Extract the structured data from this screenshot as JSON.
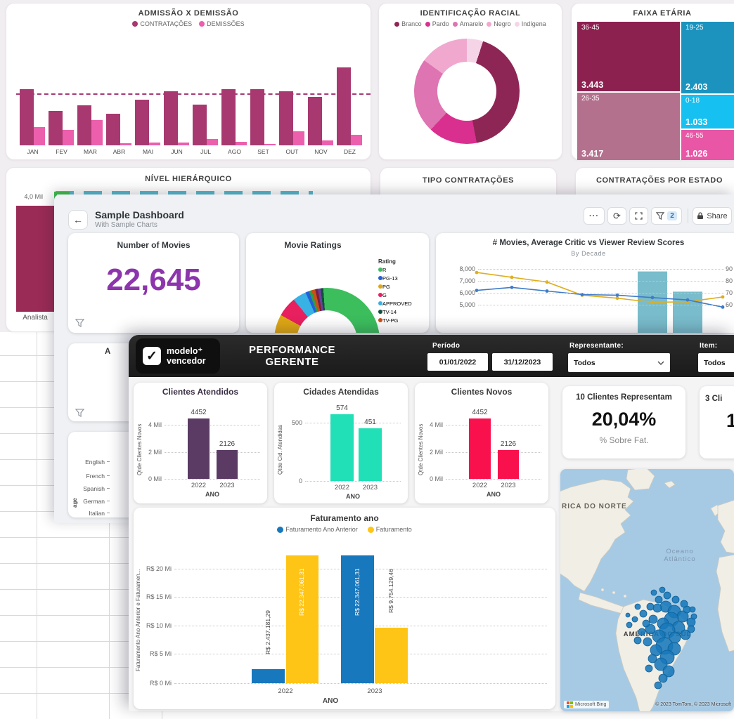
{
  "hr": {
    "admissao": {
      "title": "ADMISSÃO X DEMISSÃO",
      "legend": [
        {
          "label": "CONTRATAÇÕES",
          "color": "#A73970"
        },
        {
          "label": "DEMISSÕES",
          "color": "#EC5FAD"
        }
      ]
    },
    "racial": {
      "title": "IDENTIFICAÇÃO RACIAL",
      "legend": [
        {
          "label": "Branco",
          "color": "#8E2655"
        },
        {
          "label": "Pardo",
          "color": "#D9308F"
        },
        {
          "label": "Amarelo",
          "color": "#DE74B1"
        },
        {
          "label": "Negro",
          "color": "#F0A8CF"
        },
        {
          "label": "Indígena",
          "color": "#F6D4E7"
        }
      ]
    },
    "faixa": {
      "title": "FAIXA ETÁRIA"
    },
    "nivel": {
      "title": "NÍVEL HIERÁRQUICO",
      "ytick": "4,0 Mil",
      "category": "Analista"
    },
    "tipo_title": "TIPO CONTRATAÇÕES",
    "estado_title": "CONTRATAÇÕES POR ESTADO"
  },
  "sample": {
    "title": "Sample Dashboard",
    "subtitle": "With Sample Charts",
    "toolbar": {
      "more_icon": "···",
      "refresh_icon": "⟳",
      "filter_badge": "2",
      "share": "Share"
    },
    "movies": {
      "title": "Number of Movies",
      "value": "22,645",
      "accent": "#8C35AC"
    },
    "ratings": {
      "title": "Movie Ratings",
      "legend_title": "Rating",
      "legend": [
        {
          "label": "R",
          "color": "#3CBE5D"
        },
        {
          "label": "PG-13",
          "color": "#2360D8"
        },
        {
          "label": "PG",
          "color": "#DFA815"
        },
        {
          "label": "G",
          "color": "#E8205F"
        },
        {
          "label": "APPROVED",
          "color": "#38B1E4"
        },
        {
          "label": "TV-14",
          "color": "#11503C"
        },
        {
          "label": "TV-PG",
          "color": "#C8511A"
        }
      ]
    },
    "scores": {
      "title": "# Movies, Average Critic vs Viewer Review Scores",
      "subtitle": "By Decade",
      "left_ticks": [
        "8,000",
        "7,000",
        "6,000",
        "5,000"
      ],
      "right_ticks": [
        "90",
        "80",
        "70",
        "60"
      ]
    },
    "row2_partial_title": "A",
    "languages": {
      "labels": [
        "English",
        "French",
        "Spanish",
        "German",
        "Italian"
      ],
      "axis_partial": "age"
    }
  },
  "perf": {
    "logo_line1": "modelo⁺",
    "logo_line2": "vencedor",
    "title": "PERFORMANCE GERENTE",
    "filters": {
      "periodo_label": "Período",
      "date_from": "01/01/2022",
      "date_to": "31/12/2023",
      "representante_label": "Representante:",
      "representante_value": "Todos",
      "item_label": "Item:",
      "item_value": "Todos"
    },
    "charts": [
      {
        "title": "Clientes Atendidos",
        "ylabel": "Qtde Clientes Novos"
      },
      {
        "title": "Cidades Atendidas",
        "ylabel": "Qtde Cid. Atendidas"
      },
      {
        "title": "Clientes Novos",
        "ylabel": "Qtde Clientes Novos"
      }
    ],
    "kpi1": {
      "title": "10 Clientes Representam",
      "value": "20,04%",
      "subtitle": "% Sobre Fat."
    },
    "kpi2": {
      "title": "3 Cli",
      "value": "1"
    },
    "faturamento": {
      "title": "Faturamento ano",
      "ylabel": "Faturamento Ano Anterior e Faturamen...",
      "legend": [
        {
          "label": "Faturamento Ano Anterior",
          "color": "#1878BE"
        },
        {
          "label": "Faturamento",
          "color": "#FFC516"
        }
      ]
    },
    "map": {
      "na_label": "RICA DO NORTE",
      "ocean_label1": "Oceano",
      "ocean_label2": "Atlântico",
      "sul_label": "AMÉRICA DO SUL",
      "bing_label": "Microsoft Bing",
      "attribution": "© 2023 TomTom, © 2023 Microsoft"
    }
  },
  "chart_data": [
    {
      "id": "admissao",
      "type": "bar",
      "title": "ADMISSÃO X DEMISSÃO",
      "categories": [
        "JAN",
        "FEV",
        "MAR",
        "ABR",
        "MAI",
        "JUN",
        "JUL",
        "AGO",
        "SET",
        "OUT",
        "NOV",
        "DEZ"
      ],
      "series": [
        {
          "name": "CONTRATAÇÕES",
          "color": "#A73970",
          "values": [
            80,
            49,
            57,
            45,
            65,
            77,
            58,
            80,
            80,
            77,
            69,
            111
          ]
        },
        {
          "name": "DEMISSÕES",
          "color": "#EC5FAD",
          "values": [
            26,
            22,
            36,
            3,
            4,
            4,
            9,
            5,
            2,
            20,
            7,
            15
          ]
        }
      ],
      "note": "axis unlabeled; values are relative height units read from pixels",
      "avg_line": 74
    },
    {
      "id": "racial",
      "type": "pie",
      "title": "IDENTIFICAÇÃO RACIAL",
      "labels": [
        "Indígena",
        "Branco",
        "Pardo",
        "Amarelo",
        "Negro"
      ],
      "values": [
        5,
        42,
        15,
        23,
        15
      ],
      "colors": [
        "#F6D4E7",
        "#8E2655",
        "#D9308F",
        "#DE74B1",
        "#F0A8CF"
      ],
      "note": "percentages estimated from arc angles"
    },
    {
      "id": "faixa",
      "type": "bar",
      "note": "rendered as treemap",
      "title": "FAIXA ETÁRIA",
      "categories": [
        "36-45",
        "26-35",
        "19-25",
        "0-18",
        "46-55"
      ],
      "values": [
        3443,
        3417,
        2403,
        1033,
        1026
      ],
      "values_formatted": [
        "3.443",
        "3.417",
        "2.403",
        "1.033",
        "1.026"
      ],
      "colors": [
        "#8C2150",
        "#B4718E",
        "#1B93BE",
        "#16C0F0",
        "#E856A5"
      ]
    },
    {
      "id": "movie_ratings",
      "type": "pie",
      "title": "Movie Ratings",
      "labels": [
        "R",
        "PG-13",
        "PG",
        "G",
        "APPROVED",
        "TV-14",
        "TV-PG"
      ],
      "values": [
        55,
        3,
        11,
        6,
        4,
        2,
        2
      ],
      "note": "only top half of donut visible; shares estimated"
    },
    {
      "id": "review_scores",
      "type": "line",
      "title": "# Movies, Average Critic vs Viewer Review Scores",
      "subtitle": "By Decade",
      "x_points": 8,
      "left_axis_range": [
        5000,
        8000
      ],
      "right_axis_range": [
        60,
        90
      ],
      "series": [
        {
          "name": "viewer (yellow, est.)",
          "color": "#DFAE1E",
          "values": [
            87,
            83,
            79,
            68,
            65.5,
            62,
            62.5,
            66.5
          ]
        },
        {
          "name": "critic (blue, est.)",
          "color": "#3F7BC8",
          "values": [
            72,
            74.5,
            71.5,
            68.5,
            68,
            66,
            64,
            58
          ]
        }
      ],
      "bars": [
        {
          "i": 5,
          "value": 7800
        },
        {
          "i": 6,
          "value": 6200
        }
      ],
      "bar_color": "#79BCCB"
    },
    {
      "id": "clientes_atendidos",
      "type": "bar",
      "title": "Clientes Atendidos",
      "categories": [
        "2022",
        "2023"
      ],
      "values": [
        4452,
        2126
      ],
      "yticks": [
        "4 Mil",
        "2 Mil",
        "0 Mil"
      ],
      "xlabel": "ANO",
      "color": "#5B3A64"
    },
    {
      "id": "cidades_atendidas",
      "type": "bar",
      "title": "Cidades Atendidas",
      "categories": [
        "2022",
        "2023"
      ],
      "values": [
        574,
        451
      ],
      "yticks": [
        "500",
        "0"
      ],
      "xlabel": "ANO",
      "color": "#21DFB6"
    },
    {
      "id": "clientes_novos",
      "type": "bar",
      "title": "Clientes Novos",
      "categories": [
        "2022",
        "2023"
      ],
      "values": [
        4452,
        2126
      ],
      "yticks": [
        "4 Mil",
        "2 Mil",
        "0 Mil"
      ],
      "xlabel": "ANO",
      "color": "#F8114D"
    },
    {
      "id": "faturamento",
      "type": "bar",
      "title": "Faturamento ano",
      "categories": [
        "2022",
        "2023"
      ],
      "yticks": [
        "R$ 20 Mi",
        "R$ 15 Mi",
        "R$ 10 Mi",
        "R$ 5 Mi",
        "R$ 0 Mi"
      ],
      "xlabel": "ANO",
      "series": [
        {
          "name": "Faturamento Ano Anterior",
          "color": "#1878BE",
          "values": [
            2437181.29,
            22347061.31
          ]
        },
        {
          "name": "Faturamento",
          "color": "#FFC516",
          "values": [
            22347061.31,
            9754129.46
          ]
        }
      ],
      "bar_labels": [
        "R$ 2.437.181,29",
        "R$ 22.347.061,31",
        "R$ 22.347.061,31",
        "R$ 9.754.129,46"
      ]
    }
  ]
}
